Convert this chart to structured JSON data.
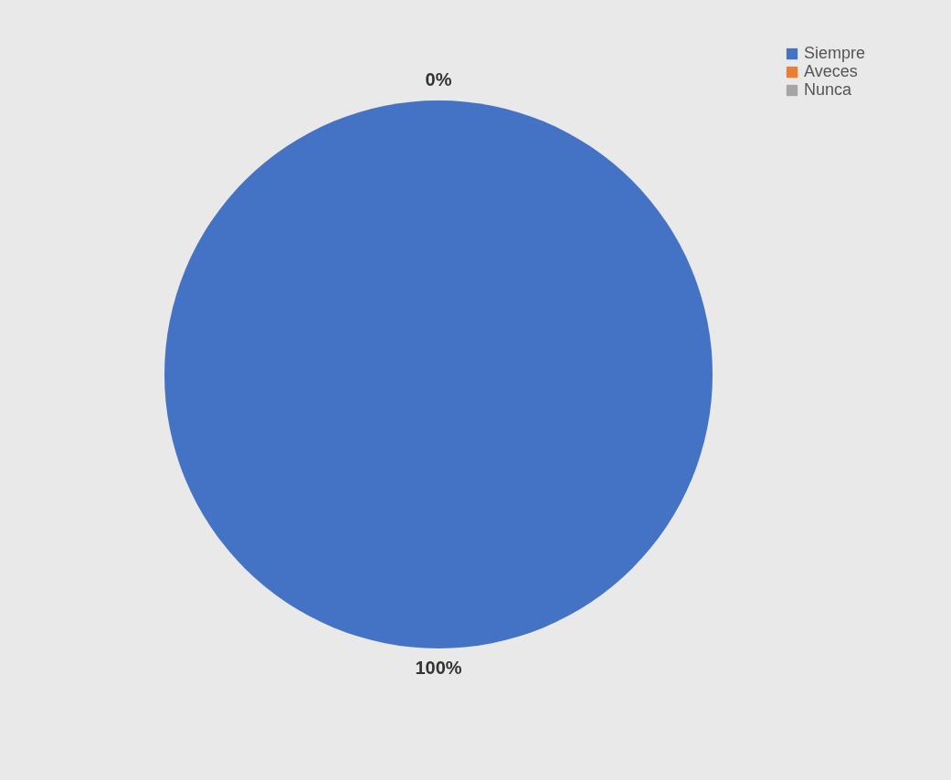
{
  "chart_data": {
    "type": "pie",
    "categories": [
      "Siempre",
      "Aveces",
      "Nunca"
    ],
    "values": [
      100,
      0,
      0
    ],
    "colors": [
      "#4472c4",
      "#ed7d31",
      "#a5a5a5"
    ],
    "value_labels": [
      "100%",
      "0%",
      null
    ],
    "legend": "right"
  }
}
